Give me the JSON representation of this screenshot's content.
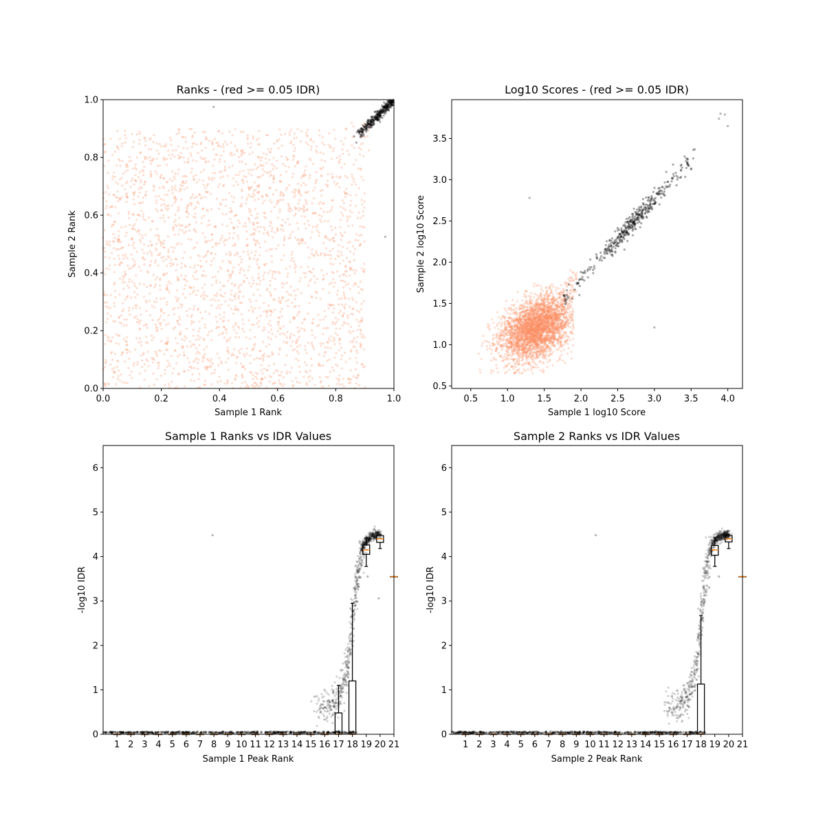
{
  "chart_data": [
    {
      "type": "scatter",
      "title": "Ranks - (red >= 0.05 IDR)",
      "xlabel": "Sample 1 Rank",
      "ylabel": "Sample 2 Rank",
      "xlim": [
        0,
        1
      ],
      "ylim": [
        0,
        1
      ],
      "xticks": [
        0.0,
        0.2,
        0.4,
        0.6,
        0.8,
        1.0
      ],
      "yticks": [
        0.0,
        0.2,
        0.4,
        0.6,
        0.8,
        1.0
      ],
      "tick_format": 1,
      "grid": false,
      "colors": {
        "idr_ge_0.05": "#fc8d62",
        "idr_lt_0.05": "#000000"
      },
      "notable_points": [
        [
          0.38,
          0.975
        ],
        [
          0.97,
          0.525
        ]
      ]
    },
    {
      "type": "scatter",
      "title": "Log10 Scores - (red >= 0.05 IDR)",
      "xlabel": "Sample 1 log10 Score",
      "ylabel": "Sample 2 log10 Score",
      "xlim": [
        0.24,
        4.2
      ],
      "ylim": [
        0.47,
        3.97
      ],
      "xticks": [
        0.5,
        1.0,
        1.5,
        2.0,
        2.5,
        3.0,
        3.5,
        4.0
      ],
      "yticks": [
        0.5,
        1.0,
        1.5,
        2.0,
        2.5,
        3.0,
        3.5
      ],
      "tick_format": 1,
      "grid": false,
      "colors": {
        "idr_ge_0.05": "#fc8d62",
        "idr_lt_0.05": "#000000"
      },
      "notable_points": [
        [
          1.3,
          2.78
        ],
        [
          3.0,
          1.21
        ],
        [
          3.9,
          3.8
        ],
        [
          3.96,
          3.79
        ],
        [
          4.0,
          3.65
        ],
        [
          3.88,
          3.74
        ]
      ]
    },
    {
      "type": "scatter",
      "title": "Sample 1 Ranks vs IDR Values",
      "xlabel": "Sample 1 Peak Rank",
      "ylabel": "-log10 IDR",
      "xlim": [
        0,
        21
      ],
      "ylim": [
        0,
        6.5
      ],
      "xticks": [
        1,
        2,
        3,
        4,
        5,
        6,
        7,
        8,
        9,
        10,
        11,
        12,
        13,
        14,
        15,
        16,
        17,
        18,
        19,
        20,
        21
      ],
      "yticks": [
        0,
        1,
        2,
        3,
        4,
        5,
        6
      ],
      "tick_format": 0,
      "grid": false,
      "notable_points": [
        [
          7.9,
          4.48
        ],
        [
          19.1,
          3.55
        ],
        [
          19.9,
          3.06
        ]
      ],
      "boxes": [
        {
          "pos": 1,
          "whislo": 0,
          "q1": 0,
          "med": 0,
          "q3": 0,
          "whishi": 0
        },
        {
          "pos": 2,
          "whislo": 0,
          "q1": 0,
          "med": 0,
          "q3": 0,
          "whishi": 0
        },
        {
          "pos": 3,
          "whislo": 0,
          "q1": 0,
          "med": 0,
          "q3": 0,
          "whishi": 0
        },
        {
          "pos": 4,
          "whislo": 0,
          "q1": 0,
          "med": 0,
          "q3": 0,
          "whishi": 0
        },
        {
          "pos": 5,
          "whislo": 0,
          "q1": 0,
          "med": 0,
          "q3": 0,
          "whishi": 0
        },
        {
          "pos": 6,
          "whislo": 0,
          "q1": 0,
          "med": 0,
          "q3": 0,
          "whishi": 0
        },
        {
          "pos": 7,
          "whislo": 0,
          "q1": 0,
          "med": 0,
          "q3": 0,
          "whishi": 0
        },
        {
          "pos": 8,
          "whislo": 0,
          "q1": 0,
          "med": 0,
          "q3": 0,
          "whishi": 0
        },
        {
          "pos": 9,
          "whislo": 0,
          "q1": 0,
          "med": 0,
          "q3": 0,
          "whishi": 0
        },
        {
          "pos": 10,
          "whislo": 0,
          "q1": 0,
          "med": 0,
          "q3": 0,
          "whishi": 0
        },
        {
          "pos": 11,
          "whislo": 0,
          "q1": 0,
          "med": 0,
          "q3": 0,
          "whishi": 0
        },
        {
          "pos": 12,
          "whislo": 0,
          "q1": 0,
          "med": 0,
          "q3": 0,
          "whishi": 0
        },
        {
          "pos": 13,
          "whislo": 0,
          "q1": 0,
          "med": 0,
          "q3": 0,
          "whishi": 0
        },
        {
          "pos": 14,
          "whislo": 0,
          "q1": 0,
          "med": 0,
          "q3": 0,
          "whishi": 0
        },
        {
          "pos": 15,
          "whislo": 0,
          "q1": 0,
          "med": 0,
          "q3": 0,
          "whishi": 0
        },
        {
          "pos": 16,
          "whislo": 0,
          "q1": 0,
          "med": 0,
          "q3": 0,
          "whishi": 0
        },
        {
          "pos": 17,
          "whislo": 0,
          "q1": 0,
          "med": 0,
          "q3": 0.48,
          "whishi": 1.1
        },
        {
          "pos": 18,
          "whislo": 0,
          "q1": 0,
          "med": 0,
          "q3": 1.2,
          "whishi": 2.95
        },
        {
          "pos": 19,
          "whislo": 3.78,
          "q1": 4.05,
          "med": 4.15,
          "q3": 4.26,
          "whishi": 4.42
        },
        {
          "pos": 20,
          "whislo": 4.18,
          "q1": 4.32,
          "med": 4.4,
          "q3": 4.47,
          "whishi": 4.5
        },
        {
          "pos": 21,
          "whislo": 3.55,
          "q1": 3.55,
          "med": 3.55,
          "q3": 3.55,
          "whishi": 3.55
        }
      ],
      "median_color": "#ff7f0e"
    },
    {
      "type": "scatter",
      "title": "Sample 2 Ranks vs IDR Values",
      "xlabel": "Sample 2 Peak Rank",
      "ylabel": "-log10 IDR",
      "xlim": [
        0,
        21
      ],
      "ylim": [
        0,
        6.5
      ],
      "xticks": [
        1,
        2,
        3,
        4,
        5,
        6,
        7,
        8,
        9,
        10,
        11,
        12,
        13,
        14,
        15,
        16,
        17,
        18,
        19,
        20,
        21
      ],
      "yticks": [
        0,
        1,
        2,
        3,
        4,
        5,
        6
      ],
      "tick_format": 0,
      "grid": false,
      "notable_points": [
        [
          10.4,
          4.48
        ],
        [
          19.3,
          3.55
        ],
        [
          18.6,
          3.3
        ]
      ],
      "boxes": [
        {
          "pos": 1,
          "whislo": 0,
          "q1": 0,
          "med": 0,
          "q3": 0,
          "whishi": 0
        },
        {
          "pos": 2,
          "whislo": 0,
          "q1": 0,
          "med": 0,
          "q3": 0,
          "whishi": 0
        },
        {
          "pos": 3,
          "whislo": 0,
          "q1": 0,
          "med": 0,
          "q3": 0,
          "whishi": 0
        },
        {
          "pos": 4,
          "whislo": 0,
          "q1": 0,
          "med": 0,
          "q3": 0,
          "whishi": 0
        },
        {
          "pos": 5,
          "whislo": 0,
          "q1": 0,
          "med": 0,
          "q3": 0,
          "whishi": 0
        },
        {
          "pos": 6,
          "whislo": 0,
          "q1": 0,
          "med": 0,
          "q3": 0,
          "whishi": 0
        },
        {
          "pos": 7,
          "whislo": 0,
          "q1": 0,
          "med": 0,
          "q3": 0,
          "whishi": 0
        },
        {
          "pos": 8,
          "whislo": 0,
          "q1": 0,
          "med": 0,
          "q3": 0,
          "whishi": 0
        },
        {
          "pos": 9,
          "whislo": 0,
          "q1": 0,
          "med": 0,
          "q3": 0,
          "whishi": 0
        },
        {
          "pos": 10,
          "whislo": 0,
          "q1": 0,
          "med": 0,
          "q3": 0,
          "whishi": 0
        },
        {
          "pos": 11,
          "whislo": 0,
          "q1": 0,
          "med": 0,
          "q3": 0,
          "whishi": 0
        },
        {
          "pos": 12,
          "whislo": 0,
          "q1": 0,
          "med": 0,
          "q3": 0,
          "whishi": 0
        },
        {
          "pos": 13,
          "whislo": 0,
          "q1": 0,
          "med": 0,
          "q3": 0,
          "whishi": 0
        },
        {
          "pos": 14,
          "whislo": 0,
          "q1": 0,
          "med": 0,
          "q3": 0,
          "whishi": 0
        },
        {
          "pos": 15,
          "whislo": 0,
          "q1": 0,
          "med": 0,
          "q3": 0,
          "whishi": 0
        },
        {
          "pos": 16,
          "whislo": 0,
          "q1": 0,
          "med": 0,
          "q3": 0,
          "whishi": 0
        },
        {
          "pos": 17,
          "whislo": 0,
          "q1": 0,
          "med": 0,
          "q3": 0,
          "whishi": 0
        },
        {
          "pos": 18,
          "whislo": 0,
          "q1": 0,
          "med": 0,
          "q3": 1.13,
          "whishi": 2.67
        },
        {
          "pos": 19,
          "whislo": 3.78,
          "q1": 4.03,
          "med": 4.15,
          "q3": 4.25,
          "whishi": 4.42
        },
        {
          "pos": 20,
          "whislo": 4.18,
          "q1": 4.33,
          "med": 4.4,
          "q3": 4.47,
          "whishi": 4.5
        },
        {
          "pos": 21,
          "whislo": 3.55,
          "q1": 3.55,
          "med": 3.55,
          "q3": 3.55,
          "whishi": 3.55
        }
      ],
      "median_color": "#ff7f0e"
    }
  ]
}
